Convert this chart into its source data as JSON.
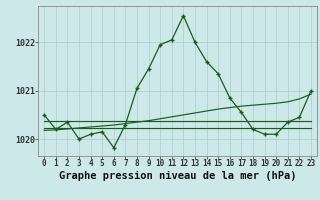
{
  "title": "Graphe pression niveau de la mer (hPa)",
  "background_color": "#cce8e8",
  "line_color": "#1a5c1a",
  "grid_color": "#aacccc",
  "hours": [
    0,
    1,
    2,
    3,
    4,
    5,
    6,
    7,
    8,
    9,
    10,
    11,
    12,
    13,
    14,
    15,
    16,
    17,
    18,
    19,
    20,
    21,
    22,
    23
  ],
  "x_labels": [
    "0",
    "1",
    "2",
    "3",
    "4",
    "5",
    "6",
    "7",
    "8",
    "9",
    "10",
    "11",
    "12",
    "13",
    "14",
    "15",
    "16",
    "17",
    "18",
    "19",
    "20",
    "21",
    "22",
    "23"
  ],
  "series1": [
    1020.5,
    1020.2,
    1020.35,
    1020.0,
    1020.1,
    1020.15,
    1019.82,
    1020.3,
    1021.05,
    1021.45,
    1021.95,
    1022.05,
    1022.55,
    1022.0,
    1021.6,
    1021.35,
    1020.85,
    1020.55,
    1020.2,
    1020.1,
    1020.1,
    1020.35,
    1020.45,
    1021.0
  ],
  "series2": [
    1020.38,
    1020.38,
    1020.38,
    1020.38,
    1020.38,
    1020.38,
    1020.38,
    1020.38,
    1020.38,
    1020.38,
    1020.38,
    1020.38,
    1020.38,
    1020.38,
    1020.38,
    1020.38,
    1020.38,
    1020.38,
    1020.38,
    1020.38,
    1020.38,
    1020.38,
    1020.38,
    1020.38
  ],
  "series3": [
    1020.22,
    1020.22,
    1020.22,
    1020.22,
    1020.22,
    1020.22,
    1020.22,
    1020.22,
    1020.22,
    1020.22,
    1020.22,
    1020.22,
    1020.22,
    1020.22,
    1020.22,
    1020.22,
    1020.22,
    1020.22,
    1020.22,
    1020.22,
    1020.22,
    1020.22,
    1020.22,
    1020.22
  ],
  "series4": [
    1020.18,
    1020.19,
    1020.21,
    1020.23,
    1020.25,
    1020.27,
    1020.29,
    1020.32,
    1020.35,
    1020.38,
    1020.42,
    1020.46,
    1020.5,
    1020.54,
    1020.58,
    1020.62,
    1020.65,
    1020.68,
    1020.7,
    1020.72,
    1020.74,
    1020.77,
    1020.83,
    1020.93
  ],
  "ylim_min": 1019.65,
  "ylim_max": 1022.75,
  "yticks": [
    1020,
    1021,
    1022
  ],
  "title_fontsize": 7.5,
  "tick_fontsize": 5.5
}
